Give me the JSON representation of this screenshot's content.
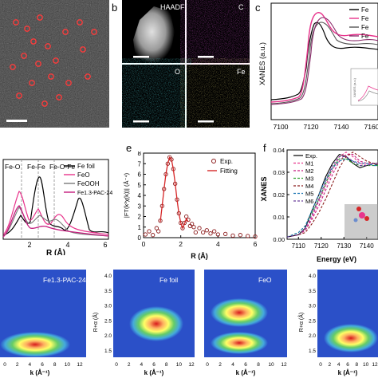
{
  "panel_labels": [
    "b",
    "c",
    "e",
    "f"
  ],
  "panel_b": {
    "tiles": [
      "HAADF",
      "C",
      "O",
      "Fe"
    ]
  },
  "panel_c": {
    "ylabel": "XANES (a.u.)",
    "xticks": [
      "7100",
      "7120",
      "7140",
      "7160"
    ],
    "legend": [
      "Fe",
      "Fe",
      "Fe",
      "Fe"
    ],
    "inset_ylabel": "XANES (a.u.)",
    "colors": [
      "#000000",
      "#e8348c",
      "#555555",
      "#8a2a6a"
    ]
  },
  "panel_d": {
    "legend": [
      "Fe foil",
      "FeO",
      "FeOOH",
      "Fe1.3-PAC-24"
    ],
    "annotations": [
      "Fe-O",
      "Fe-Fe",
      "Fe-O-Fe"
    ],
    "xlabel": "R (Å)",
    "xticks": [
      "2",
      "4",
      "6"
    ],
    "colors": [
      "#000000",
      "#e8348c",
      "#7a7a7a",
      "#c51b7d"
    ]
  },
  "panel_e": {
    "ylabel": "|FT(k³χ(k))| (Å⁻⁴)",
    "yticks": [
      "0",
      "1",
      "2",
      "3",
      "4",
      "5",
      "6",
      "7",
      "8"
    ],
    "xlabel": "R (Å)",
    "xticks": [
      "0",
      "2",
      "4",
      "6"
    ],
    "legend": [
      "Exp.",
      "Fitting"
    ]
  },
  "panel_f": {
    "ylabel": "XANES",
    "yticks": [
      "0.00",
      "0.01",
      "0.02",
      "0.03",
      "0.04"
    ],
    "xlabel": "Energy (eV)",
    "xticks": [
      "7110",
      "7120",
      "7130",
      "7140"
    ],
    "legend": [
      "Exp.",
      "M1",
      "M2",
      "M3",
      "M4",
      "M5",
      "M6"
    ]
  },
  "wavelet": {
    "titles": [
      "Fe1.3-PAC-24",
      "Fe foil",
      "FeO",
      ""
    ],
    "xlabel": "k (Å⁻¹)",
    "ylabel": "R+α (Å)",
    "xticks": [
      "0",
      "2",
      "4",
      "6",
      "8",
      "10",
      "12"
    ],
    "yticks": [
      "1.5",
      "2.0",
      "2.5",
      "3.0",
      "3.5",
      "4.0"
    ]
  },
  "chart_data": [
    {
      "type": "line",
      "id": "e",
      "xlabel": "R (Å)",
      "ylabel": "|FT(k³χ(k))| (Å⁻⁴)",
      "xlim": [
        0,
        6
      ],
      "ylim": [
        0,
        8
      ],
      "series": [
        {
          "name": "Exp.",
          "x": [
            0.1,
            0.3,
            0.5,
            0.7,
            0.8,
            0.9,
            1.0,
            1.1,
            1.2,
            1.3,
            1.4,
            1.5,
            1.6,
            1.7,
            1.8,
            1.9,
            2.0,
            2.1,
            2.2,
            2.3,
            2.4,
            2.5,
            2.6,
            2.7,
            2.8,
            3.0,
            3.2,
            3.4,
            3.6,
            3.8,
            4.0,
            4.4,
            4.8,
            5.2,
            5.6,
            6.0
          ],
          "y": [
            0.3,
            0.6,
            0.25,
            0.9,
            0.6,
            1.6,
            3.0,
            4.6,
            6.0,
            7.0,
            7.6,
            7.4,
            6.5,
            5.1,
            3.6,
            2.3,
            1.4,
            0.9,
            1.4,
            2.0,
            1.7,
            1.1,
            1.3,
            1.0,
            0.5,
            0.9,
            0.5,
            0.7,
            0.4,
            0.6,
            0.3,
            0.35,
            0.2,
            0.25,
            0.15,
            0.1
          ]
        },
        {
          "name": "Fitting",
          "x": [
            0.9,
            1.0,
            1.1,
            1.2,
            1.3,
            1.4,
            1.5,
            1.6,
            1.7,
            1.8,
            1.9,
            2.0,
            2.1,
            2.2,
            2.3,
            2.4
          ],
          "y": [
            1.5,
            3.0,
            4.6,
            6.0,
            7.0,
            7.6,
            7.4,
            6.5,
            5.1,
            3.6,
            2.3,
            1.4,
            0.9,
            1.3,
            1.8,
            1.5
          ]
        }
      ]
    },
    {
      "type": "line",
      "id": "f",
      "xlabel": "Energy (eV)",
      "ylabel": "XANES",
      "xlim": [
        7105,
        7145
      ],
      "ylim": [
        0,
        0.04
      ],
      "series": [
        {
          "name": "Exp.",
          "x": [
            7105,
            7110,
            7113,
            7116,
            7119,
            7122,
            7125,
            7128,
            7131,
            7134,
            7137,
            7140,
            7143,
            7145
          ],
          "y": [
            0.001,
            0.002,
            0.005,
            0.013,
            0.02,
            0.028,
            0.034,
            0.038,
            0.037,
            0.034,
            0.032,
            0.033,
            0.034,
            0.033
          ]
        },
        {
          "name": "M1",
          "x": [
            7105,
            7110,
            7113,
            7116,
            7119,
            7122,
            7125,
            7128,
            7131,
            7134,
            7137,
            7140,
            7143,
            7145
          ],
          "y": [
            0.001,
            0.002,
            0.004,
            0.01,
            0.017,
            0.024,
            0.031,
            0.037,
            0.039,
            0.037,
            0.034,
            0.033,
            0.034,
            0.034
          ]
        },
        {
          "name": "M2",
          "x": [
            7105,
            7110,
            7113,
            7116,
            7119,
            7122,
            7125,
            7128,
            7131,
            7134,
            7137,
            7140,
            7143,
            7145
          ],
          "y": [
            0.001,
            0.002,
            0.004,
            0.009,
            0.015,
            0.022,
            0.029,
            0.035,
            0.038,
            0.038,
            0.035,
            0.034,
            0.034,
            0.034
          ]
        },
        {
          "name": "M3",
          "x": [
            7105,
            7110,
            7113,
            7116,
            7119,
            7122,
            7125,
            7128,
            7131,
            7134,
            7137,
            7140,
            7143,
            7145
          ],
          "y": [
            0.001,
            0.003,
            0.006,
            0.012,
            0.018,
            0.025,
            0.032,
            0.036,
            0.036,
            0.034,
            0.033,
            0.033,
            0.033,
            0.033
          ]
        },
        {
          "name": "M4",
          "x": [
            7105,
            7110,
            7113,
            7116,
            7119,
            7122,
            7125,
            7128,
            7131,
            7134,
            7137,
            7140,
            7143,
            7145
          ],
          "y": [
            0.001,
            0.002,
            0.003,
            0.007,
            0.012,
            0.018,
            0.025,
            0.032,
            0.037,
            0.039,
            0.037,
            0.035,
            0.034,
            0.034
          ]
        },
        {
          "name": "M5",
          "x": [
            7105,
            7110,
            7113,
            7116,
            7119,
            7122,
            7125,
            7128,
            7131,
            7134,
            7137,
            7140,
            7143,
            7145
          ],
          "y": [
            0.001,
            0.003,
            0.006,
            0.013,
            0.02,
            0.027,
            0.032,
            0.035,
            0.036,
            0.035,
            0.034,
            0.034,
            0.033,
            0.033
          ]
        },
        {
          "name": "M6",
          "x": [
            7105,
            7110,
            7113,
            7116,
            7119,
            7122,
            7125,
            7128,
            7131,
            7134,
            7137,
            7140,
            7143,
            7145
          ],
          "y": [
            0.001,
            0.002,
            0.005,
            0.011,
            0.018,
            0.026,
            0.033,
            0.037,
            0.037,
            0.035,
            0.033,
            0.033,
            0.034,
            0.034
          ]
        }
      ]
    }
  ]
}
